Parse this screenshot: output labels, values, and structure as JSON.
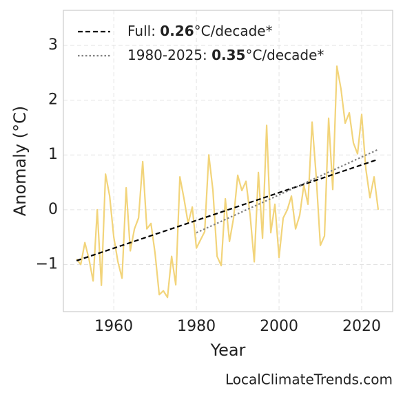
{
  "chart_data": {
    "type": "line",
    "x_label": "Year",
    "y_label": "Anomaly (°C)",
    "watermark": "LocalClimateTrends.com",
    "xlim": [
      1947.8,
      2027.5
    ],
    "ylim": [
      -1.86,
      3.64
    ],
    "xticks": [
      1960,
      1980,
      2000,
      2020
    ],
    "yticks": [
      {
        "value": -1,
        "label": "−1"
      },
      0,
      1,
      2,
      3
    ],
    "grid": true,
    "series": [
      {
        "color": "#f2d47a",
        "x": [
          1951,
          1952,
          1953,
          1954,
          1955,
          1956,
          1957,
          1958,
          1959,
          1960,
          1961,
          1962,
          1963,
          1964,
          1965,
          1966,
          1967,
          1968,
          1969,
          1970,
          1971,
          1972,
          1973,
          1974,
          1975,
          1976,
          1977,
          1978,
          1979,
          1980,
          1981,
          1982,
          1983,
          1984,
          1985,
          1986,
          1987,
          1988,
          1989,
          1990,
          1991,
          1992,
          1993,
          1994,
          1995,
          1996,
          1997,
          1998,
          1999,
          2000,
          2001,
          2002,
          2003,
          2004,
          2005,
          2006,
          2007,
          2008,
          2009,
          2010,
          2011,
          2012,
          2013,
          2014,
          2015,
          2016,
          2017,
          2018,
          2019,
          2020,
          2021,
          2022,
          2023,
          2024
        ],
        "values": [
          -0.9,
          -1.0,
          -0.6,
          -0.9,
          -1.3,
          0.0,
          -1.38,
          0.65,
          0.25,
          -0.5,
          -0.95,
          -1.25,
          0.4,
          -0.75,
          -0.35,
          -0.15,
          0.88,
          -0.35,
          -0.25,
          -0.8,
          -1.55,
          -1.48,
          -1.6,
          -0.85,
          -1.37,
          0.6,
          0.2,
          -0.25,
          0.05,
          -0.7,
          -0.55,
          -0.4,
          1.0,
          0.35,
          -0.85,
          -1.02,
          0.2,
          -0.58,
          -0.15,
          0.63,
          0.35,
          0.52,
          -0.1,
          -0.95,
          0.68,
          -0.52,
          1.54,
          -0.42,
          0.1,
          -0.87,
          -0.15,
          0.0,
          0.25,
          -0.35,
          -0.1,
          0.45,
          0.1,
          1.6,
          0.6,
          -0.65,
          -0.48,
          1.67,
          0.37,
          2.62,
          2.2,
          1.58,
          1.77,
          1.22,
          1.02,
          1.74,
          0.75,
          0.22,
          0.6,
          0.0
        ]
      }
    ],
    "trend_lines": [
      {
        "prefix": "Full: ",
        "bold": "0.26",
        "suffix": "°C/decade*",
        "color": "#000000",
        "style": "dashed",
        "x": [
          1951,
          2024
        ],
        "values": [
          -0.93,
          0.92
        ]
      },
      {
        "prefix": "1980-2025: ",
        "bold": "0.35",
        "suffix": "°C/decade*",
        "color": "#808080",
        "style": "dotted",
        "x": [
          1980,
          2024
        ],
        "values": [
          -0.42,
          1.1
        ]
      }
    ],
    "legend": "upper left"
  }
}
